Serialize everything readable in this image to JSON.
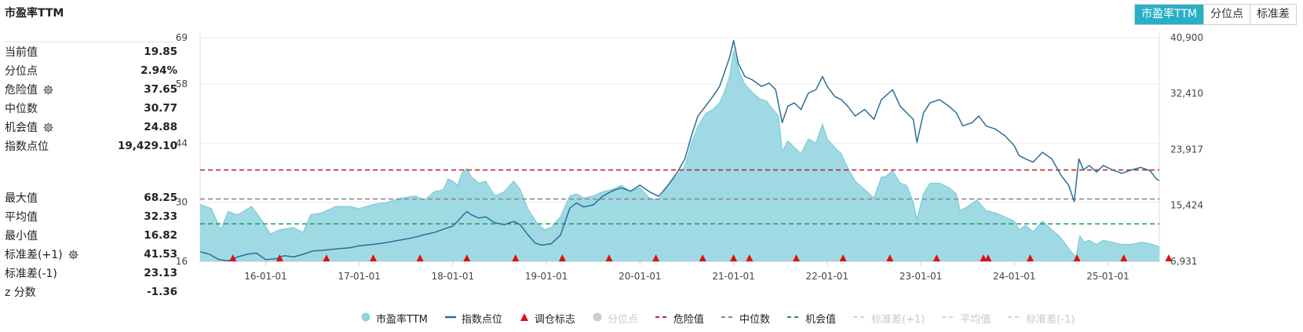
{
  "title": "市盈率TTM",
  "tabs": [
    {
      "label": "市盈率TTM",
      "active": true
    },
    {
      "label": "分位点",
      "active": false
    },
    {
      "label": "标准差",
      "active": false
    }
  ],
  "stats_top": [
    {
      "label": "当前值",
      "value": "19.85",
      "gear": false
    },
    {
      "label": "分位点",
      "value": "2.94%",
      "gear": false
    },
    {
      "label": "危险值",
      "value": "37.65",
      "gear": true
    },
    {
      "label": "中位数",
      "value": "30.77",
      "gear": false
    },
    {
      "label": "机会值",
      "value": "24.88",
      "gear": true
    },
    {
      "label": "指数点位",
      "value": "19,429.10",
      "gear": false
    }
  ],
  "stats_bottom": [
    {
      "label": "最大值",
      "value": "68.25",
      "gear": false
    },
    {
      "label": "平均值",
      "value": "32.33",
      "gear": false
    },
    {
      "label": "最小值",
      "value": "16.82",
      "gear": false
    },
    {
      "label": "标准差(+1)",
      "value": "41.53",
      "gear": true
    },
    {
      "label": "标准差(-1)",
      "value": "23.13",
      "gear": false
    },
    {
      "label": "z 分数",
      "value": "-1.36",
      "gear": false
    }
  ],
  "legend": [
    {
      "label": "市盈率TTM",
      "mark": "circle",
      "color": "#8ed3df",
      "dim": false
    },
    {
      "label": "指数点位",
      "mark": "line",
      "color": "#2c6e95",
      "dim": false
    },
    {
      "label": "调仓标志",
      "mark": "triangle",
      "color": "#dd1111",
      "dim": false
    },
    {
      "label": "分位点",
      "mark": "circle",
      "color": "#cccccc",
      "dim": true
    },
    {
      "label": "危险值",
      "mark": "dash",
      "color": "#c0282d",
      "dim": false
    },
    {
      "label": "中位数",
      "mark": "dash",
      "color": "#8a8a8a",
      "dim": false
    },
    {
      "label": "机会值",
      "mark": "dash",
      "color": "#1f9a55",
      "dim": false
    },
    {
      "label": "标准差(+1)",
      "mark": "dash",
      "color": "#d6d6d6",
      "dim": true
    },
    {
      "label": "平均值",
      "mark": "dash",
      "color": "#d6d6d6",
      "dim": true
    },
    {
      "label": "标准差(-1)",
      "mark": "dash",
      "color": "#d6d6d6",
      "dim": true
    }
  ],
  "colors": {
    "accent": "#2ab0c6",
    "pe_fill": "#8ed3df",
    "pe_line": "#7fcad7",
    "index_line": "#2c6e95",
    "danger": "#c0282d",
    "median": "#8a8a8a",
    "opportunity": "#1f9a55",
    "marker": "#dd1111"
  },
  "chart_data": {
    "type": "area",
    "x_ticks": [
      "16-01-01",
      "17-01-01",
      "18-01-01",
      "19-01-01",
      "20-01-01",
      "21-01-01",
      "22-01-01",
      "23-01-01",
      "24-01-01",
      "25-01-01"
    ],
    "y_left_ticks": [
      "16",
      "30",
      "44",
      "58",
      "69"
    ],
    "y_right_ticks": [
      "6,931",
      "15,424",
      "23,917",
      "32,410",
      "40,900"
    ],
    "y_left_range": [
      16,
      69
    ],
    "y_right_range": [
      6931,
      40900
    ],
    "x_range": [
      2015.3,
      2025.55
    ],
    "reference_lines": [
      {
        "name": "危险值",
        "value": 37.65
      },
      {
        "name": "中位数",
        "value": 30.77
      },
      {
        "name": "机会值",
        "value": 24.88
      }
    ],
    "series": [
      {
        "name": "市盈率TTM",
        "axis": "left",
        "points": [
          [
            2015.3,
            29.5
          ],
          [
            2015.42,
            28.5
          ],
          [
            2015.52,
            23.5
          ],
          [
            2015.6,
            27.8
          ],
          [
            2015.7,
            27.0
          ],
          [
            2015.85,
            29.0
          ],
          [
            2015.95,
            26.0
          ],
          [
            2016.05,
            22.5
          ],
          [
            2016.15,
            23.5
          ],
          [
            2016.3,
            24.0
          ],
          [
            2016.4,
            22.8
          ],
          [
            2016.48,
            27.0
          ],
          [
            2016.6,
            27.5
          ],
          [
            2016.75,
            29.0
          ],
          [
            2016.9,
            29.0
          ],
          [
            2017.0,
            28.5
          ],
          [
            2017.15,
            29.5
          ],
          [
            2017.3,
            30.0
          ],
          [
            2017.45,
            31.0
          ],
          [
            2017.6,
            31.5
          ],
          [
            2017.7,
            30.5
          ],
          [
            2017.8,
            32.5
          ],
          [
            2017.9,
            33.0
          ],
          [
            2017.95,
            35.5
          ],
          [
            2018.0,
            35.0
          ],
          [
            2018.05,
            34.0
          ],
          [
            2018.1,
            37.0
          ],
          [
            2018.15,
            38.0
          ],
          [
            2018.2,
            36.0
          ],
          [
            2018.28,
            34.5
          ],
          [
            2018.35,
            35.0
          ],
          [
            2018.45,
            31.5
          ],
          [
            2018.55,
            32.5
          ],
          [
            2018.65,
            35.0
          ],
          [
            2018.72,
            33.0
          ],
          [
            2018.8,
            28.5
          ],
          [
            2018.9,
            25.0
          ],
          [
            2018.98,
            23.5
          ],
          [
            2019.05,
            24.0
          ],
          [
            2019.15,
            26.5
          ],
          [
            2019.25,
            31.5
          ],
          [
            2019.32,
            32.0
          ],
          [
            2019.4,
            31.0
          ],
          [
            2019.5,
            31.5
          ],
          [
            2019.6,
            32.5
          ],
          [
            2019.7,
            33.0
          ],
          [
            2019.8,
            34.0
          ],
          [
            2019.9,
            32.5
          ],
          [
            2020.0,
            33.5
          ],
          [
            2020.1,
            31.0
          ],
          [
            2020.2,
            30.5
          ],
          [
            2020.3,
            34.0
          ],
          [
            2020.4,
            36.5
          ],
          [
            2020.48,
            38.5
          ],
          [
            2020.55,
            44.0
          ],
          [
            2020.62,
            48.0
          ],
          [
            2020.7,
            51.0
          ],
          [
            2020.78,
            52.0
          ],
          [
            2020.85,
            53.5
          ],
          [
            2020.9,
            56.0
          ],
          [
            2020.96,
            60.0
          ],
          [
            2021.0,
            66.0
          ],
          [
            2021.06,
            61.0
          ],
          [
            2021.12,
            58.0
          ],
          [
            2021.2,
            56.0
          ],
          [
            2021.28,
            54.5
          ],
          [
            2021.35,
            54.0
          ],
          [
            2021.42,
            52.0
          ],
          [
            2021.48,
            50.5
          ],
          [
            2021.52,
            42.0
          ],
          [
            2021.58,
            44.5
          ],
          [
            2021.65,
            43.0
          ],
          [
            2021.72,
            41.5
          ],
          [
            2021.8,
            45.0
          ],
          [
            2021.88,
            44.0
          ],
          [
            2021.95,
            48.5
          ],
          [
            2022.0,
            45.0
          ],
          [
            2022.08,
            43.0
          ],
          [
            2022.15,
            41.5
          ],
          [
            2022.2,
            39.0
          ],
          [
            2022.3,
            35.0
          ],
          [
            2022.4,
            33.0
          ],
          [
            2022.5,
            31.0
          ],
          [
            2022.58,
            36.0
          ],
          [
            2022.62,
            36.0
          ],
          [
            2022.7,
            37.5
          ],
          [
            2022.78,
            34.5
          ],
          [
            2022.85,
            34.0
          ],
          [
            2022.92,
            30.0
          ],
          [
            2022.96,
            26.0
          ],
          [
            2023.03,
            32.0
          ],
          [
            2023.1,
            34.5
          ],
          [
            2023.2,
            34.5
          ],
          [
            2023.3,
            33.5
          ],
          [
            2023.38,
            32.0
          ],
          [
            2023.42,
            28.0
          ],
          [
            2023.5,
            29.0
          ],
          [
            2023.6,
            30.5
          ],
          [
            2023.7,
            28.0
          ],
          [
            2023.8,
            27.5
          ],
          [
            2023.9,
            26.5
          ],
          [
            2024.0,
            25.5
          ],
          [
            2024.05,
            23.5
          ],
          [
            2024.12,
            24.5
          ],
          [
            2024.2,
            23.0
          ],
          [
            2024.3,
            25.5
          ],
          [
            2024.4,
            23.5
          ],
          [
            2024.48,
            22.0
          ],
          [
            2024.55,
            20.0
          ],
          [
            2024.6,
            18.5
          ],
          [
            2024.66,
            17.0
          ],
          [
            2024.7,
            22.0
          ],
          [
            2024.75,
            20.5
          ],
          [
            2024.8,
            21.0
          ],
          [
            2024.88,
            20.0
          ],
          [
            2024.95,
            21.0
          ],
          [
            2025.05,
            20.5
          ],
          [
            2025.15,
            20.0
          ],
          [
            2025.25,
            20.0
          ],
          [
            2025.35,
            20.5
          ],
          [
            2025.42,
            20.3
          ],
          [
            2025.5,
            19.85
          ],
          [
            2025.55,
            19.4
          ]
        ]
      },
      {
        "name": "指数点位",
        "axis": "right",
        "points": [
          [
            2015.3,
            8400
          ],
          [
            2015.4,
            8000
          ],
          [
            2015.5,
            7200
          ],
          [
            2015.6,
            7000
          ],
          [
            2015.7,
            7600
          ],
          [
            2015.8,
            8000
          ],
          [
            2015.9,
            8200
          ],
          [
            2016.0,
            7200
          ],
          [
            2016.1,
            7300
          ],
          [
            2016.2,
            7800
          ],
          [
            2016.3,
            7600
          ],
          [
            2016.4,
            8000
          ],
          [
            2016.5,
            8500
          ],
          [
            2016.6,
            8600
          ],
          [
            2016.75,
            8800
          ],
          [
            2016.9,
            9000
          ],
          [
            2017.0,
            9300
          ],
          [
            2017.15,
            9500
          ],
          [
            2017.3,
            9800
          ],
          [
            2017.45,
            10200
          ],
          [
            2017.6,
            10600
          ],
          [
            2017.7,
            11000
          ],
          [
            2017.8,
            11300
          ],
          [
            2017.9,
            11800
          ],
          [
            2018.0,
            12300
          ],
          [
            2018.05,
            13000
          ],
          [
            2018.1,
            13800
          ],
          [
            2018.15,
            14500
          ],
          [
            2018.2,
            14000
          ],
          [
            2018.28,
            13500
          ],
          [
            2018.35,
            13700
          ],
          [
            2018.45,
            12800
          ],
          [
            2018.55,
            12500
          ],
          [
            2018.65,
            13000
          ],
          [
            2018.72,
            12500
          ],
          [
            2018.8,
            11000
          ],
          [
            2018.88,
            9700
          ],
          [
            2018.95,
            9400
          ],
          [
            2019.05,
            9600
          ],
          [
            2019.15,
            10900
          ],
          [
            2019.25,
            15000
          ],
          [
            2019.32,
            15800
          ],
          [
            2019.4,
            15200
          ],
          [
            2019.5,
            15500
          ],
          [
            2019.6,
            16800
          ],
          [
            2019.7,
            17600
          ],
          [
            2019.8,
            18100
          ],
          [
            2019.9,
            17600
          ],
          [
            2020.0,
            18500
          ],
          [
            2020.1,
            17500
          ],
          [
            2020.2,
            16800
          ],
          [
            2020.3,
            18500
          ],
          [
            2020.4,
            20500
          ],
          [
            2020.48,
            22500
          ],
          [
            2020.55,
            26000
          ],
          [
            2020.62,
            29000
          ],
          [
            2020.7,
            30500
          ],
          [
            2020.78,
            32000
          ],
          [
            2020.85,
            33500
          ],
          [
            2020.9,
            35500
          ],
          [
            2020.96,
            38000
          ],
          [
            2021.0,
            40500
          ],
          [
            2021.05,
            37000
          ],
          [
            2021.12,
            35000
          ],
          [
            2021.2,
            34500
          ],
          [
            2021.3,
            33500
          ],
          [
            2021.38,
            34000
          ],
          [
            2021.45,
            33000
          ],
          [
            2021.52,
            28000
          ],
          [
            2021.58,
            30500
          ],
          [
            2021.65,
            31000
          ],
          [
            2021.72,
            30000
          ],
          [
            2021.8,
            32500
          ],
          [
            2021.88,
            33000
          ],
          [
            2021.95,
            35000
          ],
          [
            2022.0,
            33500
          ],
          [
            2022.08,
            32000
          ],
          [
            2022.15,
            31500
          ],
          [
            2022.22,
            30500
          ],
          [
            2022.3,
            29000
          ],
          [
            2022.4,
            30000
          ],
          [
            2022.5,
            28500
          ],
          [
            2022.58,
            31500
          ],
          [
            2022.62,
            32000
          ],
          [
            2022.7,
            33000
          ],
          [
            2022.78,
            30500
          ],
          [
            2022.85,
            29500
          ],
          [
            2022.92,
            28500
          ],
          [
            2022.96,
            25000
          ],
          [
            2023.03,
            29500
          ],
          [
            2023.1,
            31000
          ],
          [
            2023.2,
            31500
          ],
          [
            2023.3,
            30500
          ],
          [
            2023.38,
            29500
          ],
          [
            2023.45,
            27500
          ],
          [
            2023.55,
            28000
          ],
          [
            2023.62,
            29000
          ],
          [
            2023.7,
            27500
          ],
          [
            2023.8,
            27000
          ],
          [
            2023.9,
            26000
          ],
          [
            2024.0,
            24500
          ],
          [
            2024.05,
            23000
          ],
          [
            2024.12,
            22500
          ],
          [
            2024.2,
            22000
          ],
          [
            2024.3,
            23500
          ],
          [
            2024.4,
            22500
          ],
          [
            2024.5,
            20000
          ],
          [
            2024.58,
            18500
          ],
          [
            2024.64,
            16000
          ],
          [
            2024.69,
            22500
          ],
          [
            2024.74,
            20800
          ],
          [
            2024.8,
            21500
          ],
          [
            2024.88,
            20500
          ],
          [
            2024.95,
            21500
          ],
          [
            2025.05,
            20800
          ],
          [
            2025.15,
            20300
          ],
          [
            2025.25,
            20800
          ],
          [
            2025.35,
            21200
          ],
          [
            2025.45,
            20700
          ],
          [
            2025.52,
            19429.1
          ],
          [
            2025.55,
            19200
          ]
        ]
      },
      {
        "name": "调仓标志",
        "markers": [
          2015.65,
          2016.15,
          2016.65,
          2017.15,
          2017.65,
          2018.15,
          2018.67,
          2019.17,
          2019.67,
          2020.17,
          2020.67,
          2021.0,
          2021.17,
          2021.67,
          2022.17,
          2022.67,
          2023.17,
          2023.67,
          2023.72,
          2024.17,
          2024.67,
          2025.17,
          2025.65
        ]
      }
    ]
  }
}
